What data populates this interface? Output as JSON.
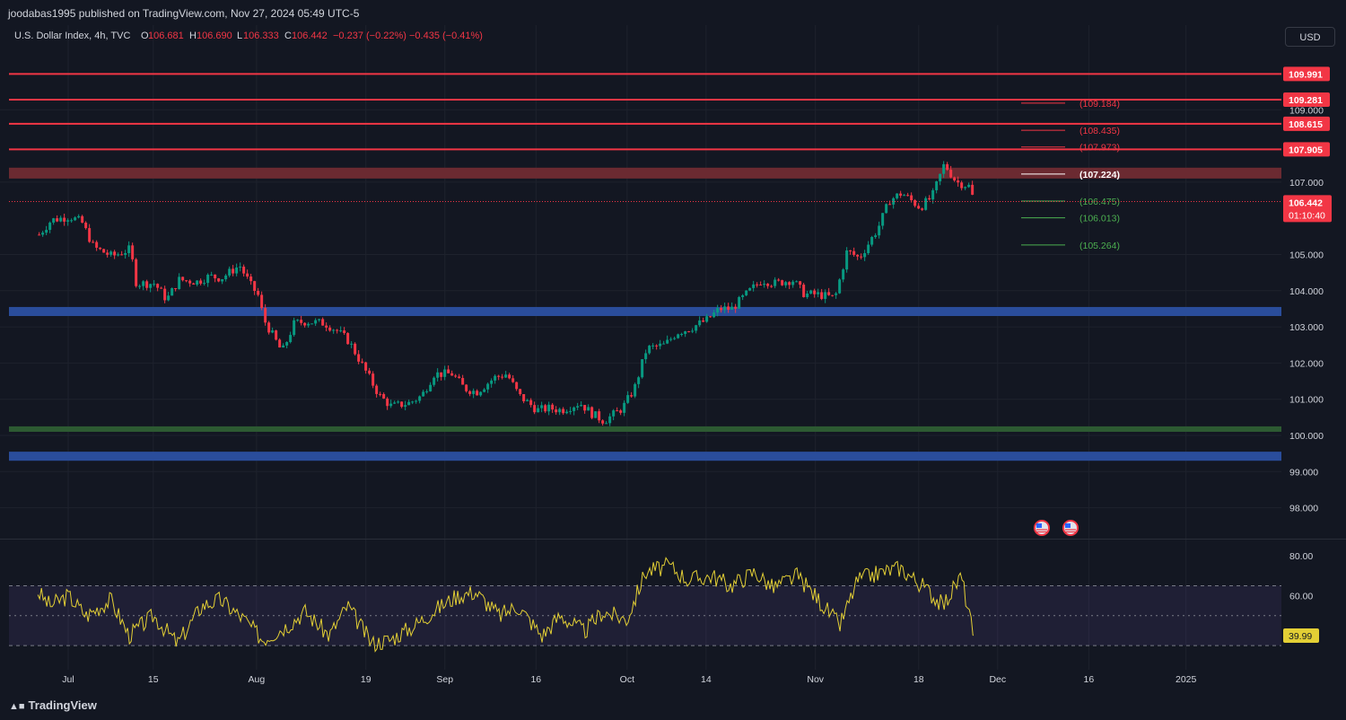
{
  "header": {
    "published": "joodabas1995 published on TradingView.com, Nov 27, 2024 05:49 UTC-5",
    "symbol": "U.S. Dollar Index, 4h, TVC",
    "o_label": "O",
    "o": "106.681",
    "h_label": "H",
    "h": "106.690",
    "l_label": "L",
    "l": "106.333",
    "c_label": "C",
    "c": "106.442",
    "change": "−0.237 (−0.22%)",
    "change2": "−0.435 (−0.41%)"
  },
  "currency_button": "USD",
  "footer": {
    "brand": "TradingView",
    "logo": "tradingview-logo-icon"
  },
  "colors": {
    "background": "#131722",
    "up": "#089981",
    "down": "#f23645",
    "resistance": "#f23645",
    "blue_zone": "#2a4d9b",
    "green_zone": "#2d5a32",
    "red_zone": "#6b2a31",
    "rsi_line": "#e3cf35",
    "rsi_band": "#7e57c2"
  },
  "chart_data": [
    {
      "type": "candlestick",
      "title": "U.S. Dollar Index, 4h, TVC",
      "price_axis": {
        "range": [
          97.5,
          110.5
        ],
        "ticks": [
          "109.000",
          "107.000",
          "105.000",
          "104.000",
          "103.000",
          "102.000",
          "101.000",
          "100.000",
          "99.000",
          "98.000"
        ]
      },
      "time_axis": {
        "labels": [
          "Jul",
          "15",
          "Aug",
          "19",
          "Sep",
          "16",
          "Oct",
          "14",
          "Nov",
          "18",
          "Dec",
          "16",
          "2025"
        ],
        "label_positions": [
          [
            0,
            0
          ]
        ]
      },
      "time_axis_labels_x_dates": [
        "2024-07-01",
        "2024-07-15",
        "2024-08-01",
        "2024-08-19",
        "2024-09-01",
        "2024-09-16",
        "2024-10-01",
        "2024-10-14",
        "2024-11-01",
        "2024-11-18",
        "2024-12-01",
        "2024-12-16",
        "2025-01-01"
      ],
      "path_points": [
        [
          "2024-06-26",
          105.55
        ],
        [
          "2024-06-28",
          105.95
        ],
        [
          "2024-07-01",
          106.05
        ],
        [
          "2024-07-03",
          105.9
        ],
        [
          "2024-07-05",
          105.2
        ],
        [
          "2024-07-08",
          104.95
        ],
        [
          "2024-07-11",
          105.15
        ],
        [
          "2024-07-12",
          104.2
        ],
        [
          "2024-07-15",
          104.2
        ],
        [
          "2024-07-17",
          103.75
        ],
        [
          "2024-07-19",
          104.3
        ],
        [
          "2024-07-22",
          104.25
        ],
        [
          "2024-07-24",
          104.4
        ],
        [
          "2024-07-26",
          104.35
        ],
        [
          "2024-07-29",
          104.7
        ],
        [
          "2024-07-31",
          104.1
        ],
        [
          "2024-08-01",
          103.9
        ],
        [
          "2024-08-02",
          103.2
        ],
        [
          "2024-08-05",
          102.3
        ],
        [
          "2024-08-07",
          103.1
        ],
        [
          "2024-08-09",
          103.15
        ],
        [
          "2024-08-12",
          103.1
        ],
        [
          "2024-08-14",
          102.9
        ],
        [
          "2024-08-16",
          102.6
        ],
        [
          "2024-08-19",
          101.7
        ],
        [
          "2024-08-21",
          101.1
        ],
        [
          "2024-08-23",
          100.8
        ],
        [
          "2024-08-26",
          100.9
        ],
        [
          "2024-08-28",
          101.1
        ],
        [
          "2024-08-30",
          101.7
        ],
        [
          "2024-09-02",
          101.7
        ],
        [
          "2024-09-04",
          101.3
        ],
        [
          "2024-09-06",
          101.2
        ],
        [
          "2024-09-09",
          101.6
        ],
        [
          "2024-09-11",
          101.7
        ],
        [
          "2024-09-13",
          101.1
        ],
        [
          "2024-09-16",
          100.7
        ],
        [
          "2024-09-18",
          100.75
        ],
        [
          "2024-09-20",
          100.7
        ],
        [
          "2024-09-23",
          100.9
        ],
        [
          "2024-09-25",
          100.6
        ],
        [
          "2024-09-27",
          100.4
        ],
        [
          "2024-09-30",
          100.75
        ],
        [
          "2024-10-02",
          101.3
        ],
        [
          "2024-10-04",
          102.4
        ],
        [
          "2024-10-07",
          102.5
        ],
        [
          "2024-10-09",
          102.85
        ],
        [
          "2024-10-11",
          102.95
        ],
        [
          "2024-10-14",
          103.2
        ],
        [
          "2024-10-16",
          103.5
        ],
        [
          "2024-10-18",
          103.5
        ],
        [
          "2024-10-21",
          104.0
        ],
        [
          "2024-10-23",
          104.3
        ],
        [
          "2024-10-25",
          104.2
        ],
        [
          "2024-10-28",
          104.3
        ],
        [
          "2024-10-30",
          103.9
        ],
        [
          "2024-11-01",
          103.9
        ],
        [
          "2024-11-04",
          103.8
        ],
        [
          "2024-11-06",
          105.1
        ],
        [
          "2024-11-08",
          104.9
        ],
        [
          "2024-11-11",
          105.7
        ],
        [
          "2024-11-13",
          106.5
        ],
        [
          "2024-11-15",
          106.7
        ],
        [
          "2024-11-18",
          106.3
        ],
        [
          "2024-11-20",
          106.6
        ],
        [
          "2024-11-22",
          107.5
        ],
        [
          "2024-11-24",
          107.0
        ],
        [
          "2024-11-26",
          106.9
        ],
        [
          "2024-11-27",
          106.442
        ]
      ],
      "current_price": "106.442",
      "countdown": "01:10:40",
      "horizontal_levels": [
        {
          "label": "109.991",
          "value": 109.991
        },
        {
          "label": "109.281",
          "value": 109.281
        },
        {
          "label": "108.615",
          "value": 108.615
        },
        {
          "label": "107.905",
          "value": 107.905
        }
      ],
      "zones": [
        {
          "name": "red-zone",
          "from": 107.1,
          "to": 107.4,
          "color": "#6b2a31"
        },
        {
          "name": "blue-zone-upper",
          "from": 103.3,
          "to": 103.55,
          "color": "#2a4d9b"
        },
        {
          "name": "green-zone",
          "from": 100.1,
          "to": 100.25,
          "color": "#2d5a32"
        },
        {
          "name": "blue-zone-lower",
          "from": 99.3,
          "to": 99.55,
          "color": "#2a4d9b"
        }
      ],
      "fib_levels": [
        {
          "label": "(109.184)",
          "value": 109.184,
          "color": "#f23645"
        },
        {
          "label": "(108.435)",
          "value": 108.435,
          "color": "#f23645"
        },
        {
          "label": "(107.973)",
          "value": 107.973,
          "color": "#f23645"
        },
        {
          "label": "(107.224)",
          "value": 107.224,
          "color": "#ffffff"
        },
        {
          "label": "(106.475)",
          "value": 106.475,
          "color": "#4caf50"
        },
        {
          "label": "(106.013)",
          "value": 106.013,
          "color": "#4caf50"
        },
        {
          "label": "(105.264)",
          "value": 105.264,
          "color": "#4caf50"
        }
      ],
      "event_icons": [
        "us-flag-icon",
        "us-flag-icon"
      ]
    },
    {
      "type": "line",
      "title": "",
      "y_axis": {
        "range": [
          30,
          85
        ],
        "ticks": [
          "80.00",
          "60.00"
        ]
      },
      "band": [
        35,
        65
      ],
      "midline": 50,
      "current_value": "39.99",
      "x": [
        "2024-06-26",
        "2024-06-28",
        "2024-07-01",
        "2024-07-04",
        "2024-07-08",
        "2024-07-11",
        "2024-07-15",
        "2024-07-19",
        "2024-07-23",
        "2024-07-26",
        "2024-07-30",
        "2024-08-02",
        "2024-08-06",
        "2024-08-09",
        "2024-08-13",
        "2024-08-16",
        "2024-08-20",
        "2024-08-23",
        "2024-08-27",
        "2024-08-30",
        "2024-09-03",
        "2024-09-06",
        "2024-09-10",
        "2024-09-13",
        "2024-09-17",
        "2024-09-20",
        "2024-09-24",
        "2024-09-27",
        "2024-10-01",
        "2024-10-04",
        "2024-10-08",
        "2024-10-11",
        "2024-10-15",
        "2024-10-18",
        "2024-10-22",
        "2024-10-25",
        "2024-10-29",
        "2024-11-01",
        "2024-11-05",
        "2024-11-08",
        "2024-11-12",
        "2024-11-15",
        "2024-11-19",
        "2024-11-22",
        "2024-11-25",
        "2024-11-27"
      ],
      "values": [
        62,
        55,
        60,
        50,
        58,
        40,
        50,
        36,
        55,
        58,
        48,
        38,
        45,
        52,
        40,
        55,
        36,
        38,
        45,
        52,
        60,
        62,
        50,
        55,
        40,
        50,
        42,
        52,
        48,
        72,
        75,
        68,
        70,
        65,
        72,
        64,
        70,
        60,
        45,
        68,
        72,
        74,
        64,
        55,
        70,
        39.99
      ]
    }
  ]
}
